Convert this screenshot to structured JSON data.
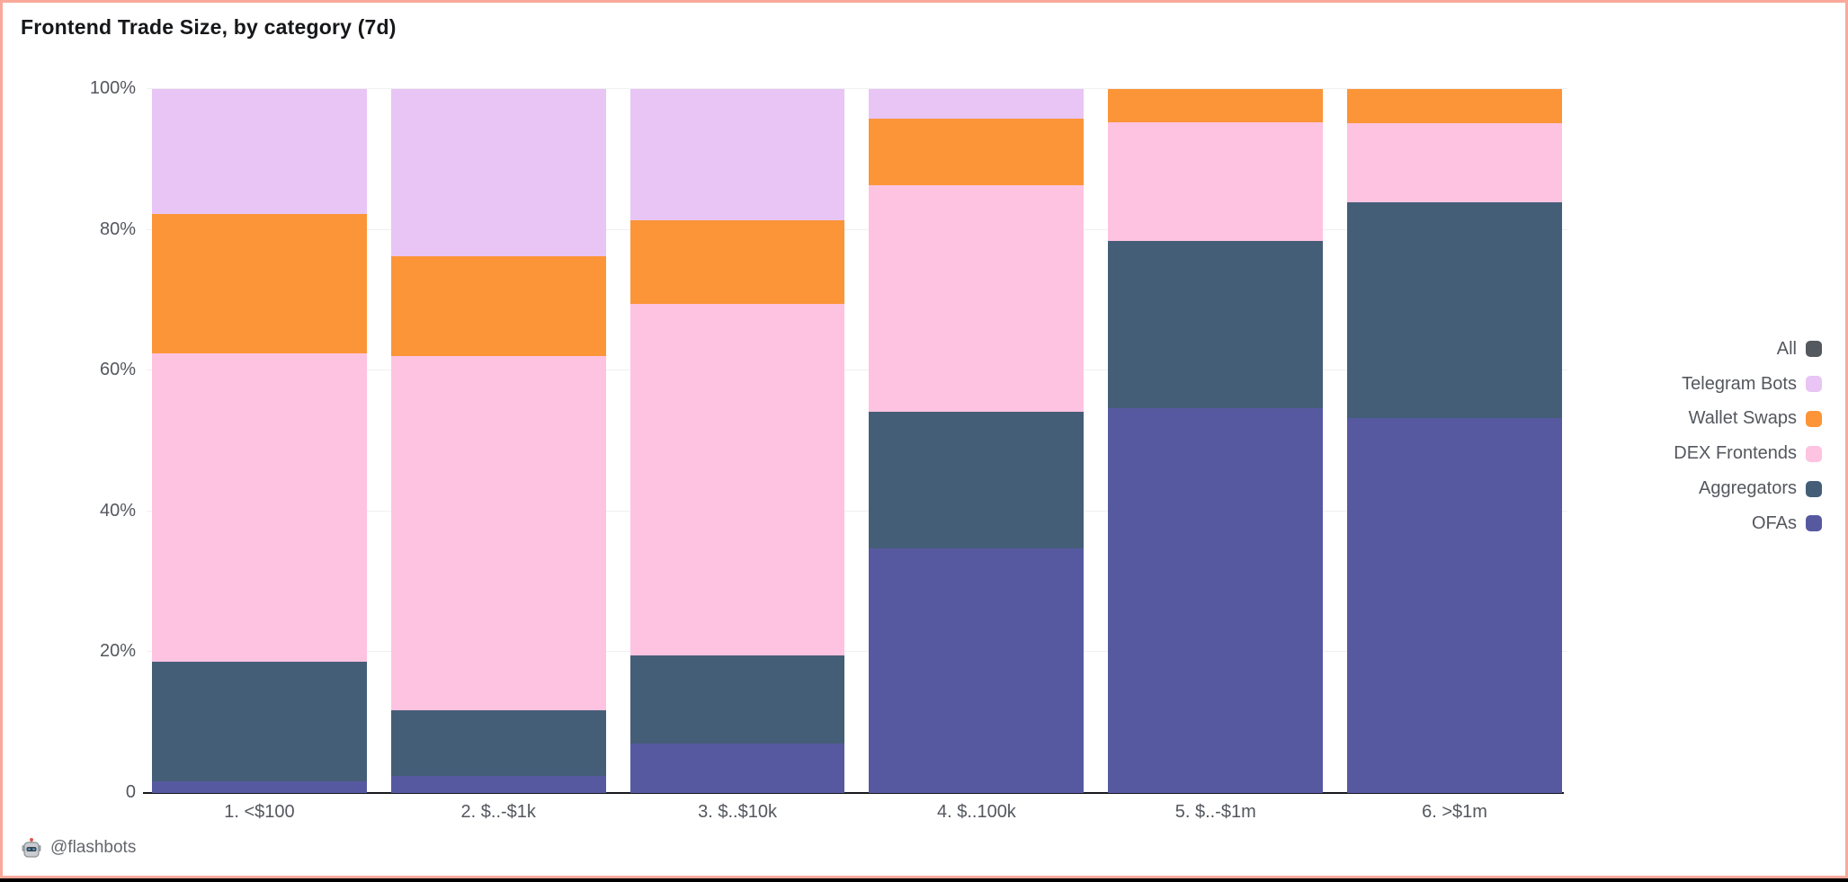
{
  "title": "Frontend Trade Size, by category (7d)",
  "footer": {
    "handle": "@flashbots",
    "icon": "robot-icon"
  },
  "colors": {
    "border": "#f9a99a",
    "background": "#ffffff",
    "gridline": "#f0f0f2",
    "axis_line": "#16181c",
    "tick_text": "#54575e",
    "title_text": "#16171a",
    "all": "#54585f",
    "telegram_bots": "#e8c5f4",
    "wallet_swaps": "#fb9538",
    "dex_frontends": "#fec3e0",
    "aggregators": "#455e78",
    "ofas": "#5659a0"
  },
  "legend": {
    "position": "right",
    "items": [
      {
        "label": "All",
        "color": "#54585f"
      },
      {
        "label": "Telegram Bots",
        "color": "#e8c5f4"
      },
      {
        "label": "Wallet Swaps",
        "color": "#fb9538"
      },
      {
        "label": "DEX Frontends",
        "color": "#fec3e0"
      },
      {
        "label": "Aggregators",
        "color": "#455e78"
      },
      {
        "label": "OFAs",
        "color": "#5659a0"
      }
    ]
  },
  "chart_data": {
    "type": "bar",
    "variant": "stacked-percent-column",
    "title": "Frontend Trade Size, by category (7d)",
    "categories": [
      "1. <$100",
      "2. $..-$1k",
      "3. $..$10k",
      "4. $..100k",
      "5. $..-$1m",
      "6. >$1m"
    ],
    "series": [
      {
        "name": "OFAs",
        "color": "#5659a0",
        "values": [
          1.6,
          2.4,
          7.0,
          34.8,
          54.6,
          53.2
        ]
      },
      {
        "name": "Aggregators",
        "color": "#455e78",
        "values": [
          17.1,
          9.4,
          12.6,
          19.3,
          23.8,
          30.7
        ]
      },
      {
        "name": "DEX Frontends",
        "color": "#fec3e0",
        "values": [
          43.8,
          50.3,
          49.9,
          32.2,
          16.9,
          11.2
        ]
      },
      {
        "name": "Wallet Swaps",
        "color": "#fb9538",
        "values": [
          19.8,
          14.2,
          11.8,
          9.5,
          4.7,
          4.9
        ]
      },
      {
        "name": "Telegram Bots",
        "color": "#e8c5f4",
        "values": [
          17.7,
          23.7,
          18.7,
          4.2,
          0,
          0
        ]
      }
    ],
    "series_stack_order_note": "series listed bottom-to-top",
    "xlabel": "",
    "ylabel": "",
    "ylim": [
      0,
      100
    ],
    "y_ticks": [
      {
        "pct": 0,
        "label": "0"
      },
      {
        "pct": 20,
        "label": "20%"
      },
      {
        "pct": 40,
        "label": "40%"
      },
      {
        "pct": 60,
        "label": "60%"
      },
      {
        "pct": 80,
        "label": "80%"
      },
      {
        "pct": 100,
        "label": "100%"
      }
    ],
    "grid": "horizontal",
    "legend_position": "right"
  }
}
